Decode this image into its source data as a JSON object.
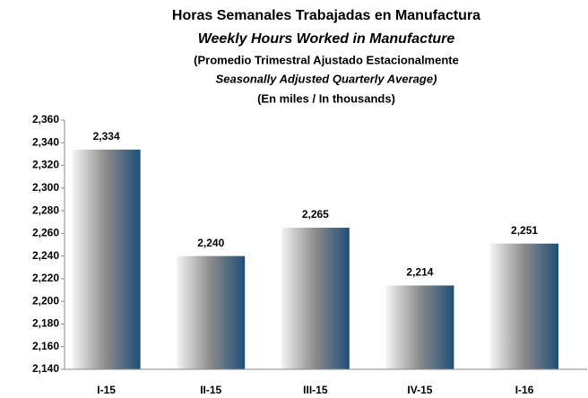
{
  "chart_data": {
    "type": "bar",
    "title": "Horas Semanales Trabajadas en Manufactura",
    "subtitle": [
      "Weekly Hours Worked in Manufacture",
      "(Promedio Trimestral Ajustado Estacionalmente",
      "Seasonally Adjusted Quarterly Average)",
      "(En miles / In thousands)"
    ],
    "categories": [
      "I-15",
      "II-15",
      "III-15",
      "IV-15",
      "I-16"
    ],
    "values": [
      2334,
      2240,
      2265,
      2214,
      2251
    ],
    "value_labels": [
      "2,334",
      "2,240",
      "2,265",
      "2,214",
      "2,251"
    ],
    "gradient": [
      "#f4f4f4",
      "#8a8a8a",
      "#1f4e79"
    ],
    "ylim": [
      2140,
      2360
    ],
    "yticks": [
      {
        "value": 2140,
        "label": "2,140"
      },
      {
        "value": 2160,
        "label": "2,160"
      },
      {
        "value": 2180,
        "label": "2,180"
      },
      {
        "value": 2200,
        "label": "2,200"
      },
      {
        "value": 2220,
        "label": "2,220"
      },
      {
        "value": 2240,
        "label": "2,240"
      },
      {
        "value": 2260,
        "label": "2,260"
      },
      {
        "value": 2280,
        "label": "2,280"
      },
      {
        "value": 2300,
        "label": "2,300"
      },
      {
        "value": 2320,
        "label": "2,320"
      },
      {
        "value": 2340,
        "label": "2,340"
      },
      {
        "value": 2360,
        "label": "2,360"
      }
    ],
    "grid": false
  }
}
